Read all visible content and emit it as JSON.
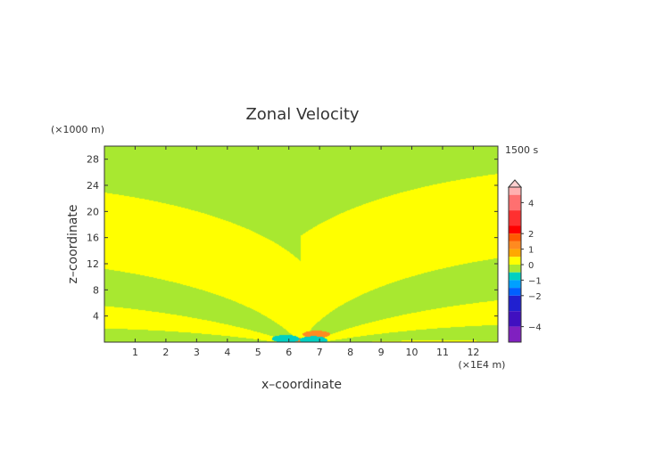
{
  "chart_data": {
    "type": "heatmap",
    "title": "Zonal Velocity",
    "time_label": "1500 s",
    "xlabel": "x–coordinate",
    "ylabel": "z–coordinate",
    "x_unit": "(×1E4 m)",
    "y_unit": "(×1000 m)",
    "xlim": [
      0,
      12.8
    ],
    "ylim": [
      0,
      30
    ],
    "x_ticks": [
      1,
      2,
      3,
      4,
      5,
      6,
      7,
      8,
      9,
      10,
      11,
      12
    ],
    "y_ticks": [
      4,
      8,
      12,
      16,
      20,
      24,
      28
    ],
    "colorbar": {
      "tick_labels": [
        "4",
        "2",
        "1",
        "0",
        "−1",
        "−2",
        "−4"
      ],
      "tick_values": [
        4,
        2,
        1,
        0,
        -1,
        -2,
        -4
      ],
      "range": [
        -5,
        5
      ],
      "levels": [
        {
          "from": 4.5,
          "to": 5,
          "color": "#ffb0b0"
        },
        {
          "from": 3.5,
          "to": 4.5,
          "color": "#ff7070"
        },
        {
          "from": 2.5,
          "to": 3.5,
          "color": "#ff3030"
        },
        {
          "from": 2,
          "to": 2.5,
          "color": "#ff0000"
        },
        {
          "from": 1.5,
          "to": 2,
          "color": "#ff5a00"
        },
        {
          "from": 1,
          "to": 1.5,
          "color": "#ff8a20"
        },
        {
          "from": 0.5,
          "to": 1,
          "color": "#ffa800"
        },
        {
          "from": 0,
          "to": 0.5,
          "color": "#ffff00"
        },
        {
          "from": -0.5,
          "to": 0,
          "color": "#a8e830"
        },
        {
          "from": -1,
          "to": -0.5,
          "color": "#00d0c0"
        },
        {
          "from": -1.5,
          "to": -1,
          "color": "#00a0ff"
        },
        {
          "from": -2,
          "to": -1.5,
          "color": "#0060ff"
        },
        {
          "from": -3,
          "to": -2,
          "color": "#2020d0"
        },
        {
          "from": -4,
          "to": -3,
          "color": "#4010c0"
        },
        {
          "from": -5,
          "to": -4,
          "color": "#8020c0"
        }
      ]
    },
    "colors": {
      "positive_field": "#ffff00",
      "negative_field": "#a8e830",
      "core_positive": "#ff8a20",
      "core_negative": "#00d0c0"
    },
    "field_source": {
      "x_center": 6.4,
      "core_negative_points": [
        [
          5.9,
          0.5
        ],
        [
          6.8,
          0.3
        ]
      ],
      "core_positive_points": [
        [
          6.9,
          1.2
        ],
        [
          6.1,
          0.2
        ]
      ]
    }
  }
}
